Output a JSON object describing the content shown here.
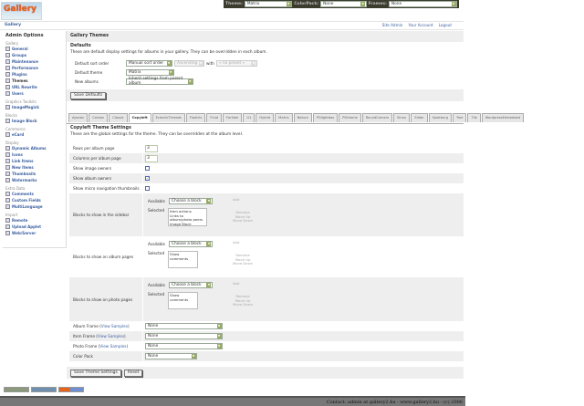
{
  "topbar": {
    "theme_label": "Theme:",
    "theme_value": "Matrix",
    "colorpack_label": "ColorPack:",
    "colorpack_value": "None",
    "frames_label": "Frames:",
    "frames_value": "None"
  },
  "logo_text": "Gallery",
  "breadcrumb": "Gallery",
  "system_links": [
    "Site Admin",
    "Your Account",
    "Logout"
  ],
  "sidebar": {
    "title": "Admin Options",
    "groups": [
      {
        "name": "Gallery",
        "items": [
          "General",
          "Groups",
          "Maintenance",
          "Performance",
          "Plugins",
          "Themes",
          "URL Rewrite",
          "Users"
        ]
      },
      {
        "name": "Graphics Toolkits",
        "items": [
          "ImageMagick"
        ]
      },
      {
        "name": "Blocks",
        "items": [
          "Image Block"
        ]
      },
      {
        "name": "Commerce",
        "items": [
          "eCard"
        ]
      },
      {
        "name": "Display",
        "items": [
          "Dynamic Albums",
          "Icons",
          "Link Items",
          "New Items",
          "Thumbnails",
          "Watermarks"
        ]
      },
      {
        "name": "Extra Data",
        "items": [
          "Comments",
          "Custom Fields",
          "MultiLanguage"
        ]
      },
      {
        "name": "Import",
        "items": [
          "Remote",
          "Upload Applet",
          "Web/Server"
        ]
      }
    ],
    "current": "Themes"
  },
  "main": {
    "title": "Gallery Themes",
    "defaults": {
      "heading": "Defaults",
      "description": "These are default display settings for albums in your gallery. They can be overridden in each album.",
      "sort_label": "Default sort order",
      "sort_value": "Manual sort order",
      "direction_value": "Ascending",
      "with_label": "with",
      "with_value": "« no preset »",
      "theme_label": "Default theme",
      "theme_value": "Matrix",
      "new_albums_label": "New albums",
      "new_albums_value": "Inherit settings from parent album",
      "save_button": "Save Defaults"
    },
    "tabs": [
      "Ajaxian",
      "Carbon",
      "Classic",
      "Copyleft",
      "EclecticThreads",
      "Floatrix",
      "Fluid",
      "ForSale",
      "G1",
      "Hybrid",
      "Matrix",
      "Nature",
      "PGlightbox",
      "PGtheme",
      "RoundCorners",
      "Siriux",
      "Slider",
      "Splatburg",
      "Tree",
      "Tile",
      "WordpressEmbedded"
    ],
    "active_tab": "Copyleft",
    "settings": {
      "heading": "Copyleft Theme Settings",
      "description": "These are the global settings for the theme. They can be overridden at the album level.",
      "rows_label": "Rows per album page",
      "rows_value": "3",
      "cols_label": "Columns per album page",
      "cols_value": "3",
      "image_owners_label": "Show image owners",
      "image_owners": false,
      "album_owners_label": "Show album owners",
      "album_owners": true,
      "micro_label": "Show micro navigation thumbnails",
      "micro": false,
      "available_label": "Available",
      "selected_label": "Selected",
      "choose": "Choose a block",
      "add": "Add",
      "remove": "Remove",
      "move_up": "Move Up",
      "move_down": "Move Down",
      "sidebar_blocks_label": "Blocks to show in the sidebar",
      "sidebar_blocks": [
        "Item actions",
        "Links to album/photo peers",
        "Image Block"
      ],
      "album_blocks_label": "Blocks to show on album pages",
      "album_blocks": [
        "Show comments"
      ],
      "photo_blocks_label": "Blocks to show on photo pages",
      "photo_blocks": [
        "Show comments"
      ],
      "album_frame_label": "Album Frame",
      "item_frame_label": "Item Frame",
      "photo_frame_label": "Photo Frame",
      "view_samples": "View Samples",
      "album_frame": "None",
      "item_frame": "None",
      "photo_frame": "None",
      "color_pack_label": "Color Pack",
      "color_pack": "None",
      "save_button": "Save Theme Settings",
      "reset_button": "Reset"
    }
  },
  "footer": "Contact: admin at gallery2.hu - www.gallery2.hu - (c) 2006",
  "colors": {
    "link": "#3a5fa0",
    "band": "#eeeeee",
    "footer": "#777777",
    "topbar": "#3b3b2e"
  }
}
